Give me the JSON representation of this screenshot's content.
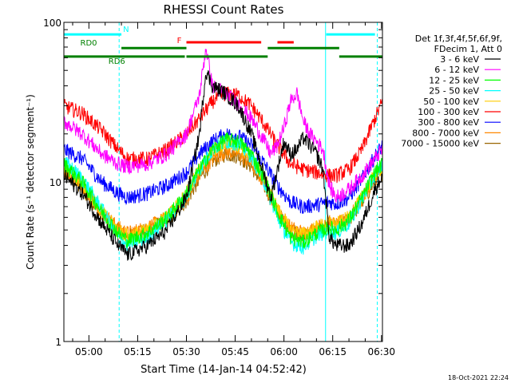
{
  "chart_data": {
    "type": "line",
    "title": "RHESSI Count Rates",
    "xlabel": "Start Time (14-Jan-14 04:52:42)",
    "ylabel": "Count Rate (s⁻¹ detector segment⁻¹)",
    "yscale": "log",
    "ylim": [
      1,
      100
    ],
    "xlim_minutes": [
      -7.7,
      90.3
    ],
    "x_tick_labels": [
      "05:00",
      "05:15",
      "05:30",
      "05:45",
      "06:00",
      "06:15",
      "06:30"
    ],
    "x_tick_minutes": [
      0,
      15,
      30,
      45,
      60,
      75,
      90
    ],
    "y_tick_labels": [
      "1",
      "10",
      "100"
    ],
    "y_tick_values": [
      1,
      10,
      100
    ],
    "legend_header": [
      "Det 1f,3f,4f,5f,6f,9f,",
      "FDecim 1, Att 0"
    ],
    "legend_position": "right",
    "timestamp": "18-Oct-2021 22:24",
    "series": [
      {
        "name": "3 - 6 keV",
        "color": "#000000",
        "x": [
          -7.7,
          -2,
          4,
          9,
          12,
          18,
          24,
          30,
          34,
          36,
          38,
          42,
          46,
          50,
          54,
          56,
          58,
          60,
          62,
          64,
          66,
          68,
          70,
          72,
          74,
          76,
          80,
          84,
          88,
          90.3
        ],
        "values": [
          11,
          8.5,
          5.5,
          4,
          3.5,
          4,
          5,
          8,
          20,
          50,
          40,
          36,
          30,
          20,
          11,
          8,
          12,
          18,
          15,
          16,
          19,
          17,
          15,
          12,
          4.5,
          4,
          4,
          5.5,
          9,
          11
        ]
      },
      {
        "name": "6 - 12 keV",
        "color": "#ff00ff",
        "x": [
          -7.7,
          -2,
          4,
          9,
          12,
          18,
          24,
          30,
          34,
          36,
          38,
          42,
          46,
          50,
          54,
          56,
          58,
          60,
          62,
          64,
          66,
          68,
          70,
          72,
          74,
          76,
          80,
          84,
          88,
          90.3
        ],
        "values": [
          24,
          20,
          15,
          13,
          12.5,
          13,
          15,
          20,
          35,
          70,
          40,
          36,
          31,
          25,
          18,
          15,
          17,
          22,
          32,
          36,
          24,
          20,
          18,
          16,
          9.5,
          8,
          9,
          11,
          14,
          16
        ]
      },
      {
        "name": "12 - 25 keV",
        "color": "#00ff00",
        "x": [
          -7.7,
          -2,
          4,
          9,
          12,
          18,
          24,
          30,
          34,
          38,
          42,
          46,
          50,
          54,
          58,
          62,
          66,
          70,
          74,
          76,
          80,
          84,
          88,
          90.3
        ],
        "values": [
          13,
          10,
          6.5,
          4.8,
          4.3,
          4.8,
          6,
          8.5,
          12,
          16,
          18.5,
          18,
          15,
          10.5,
          6.5,
          4.5,
          4.2,
          4.8,
          5.2,
          5,
          5.8,
          8,
          11.5,
          13
        ]
      },
      {
        "name": "25 - 50 keV",
        "color": "#00ffff",
        "x": [
          -7.7,
          -2,
          4,
          9,
          12,
          18,
          24,
          30,
          34,
          38,
          42,
          46,
          50,
          54,
          58,
          62,
          66,
          70,
          74,
          76,
          80,
          84,
          88,
          90.3
        ],
        "values": [
          13.5,
          10.5,
          6.8,
          4.5,
          4,
          4.5,
          5.8,
          8.2,
          12,
          16,
          18,
          17.5,
          14.5,
          10,
          6,
          4.2,
          3.9,
          4.6,
          5,
          4.8,
          5.5,
          7.8,
          11,
          13
        ]
      },
      {
        "name": "50 - 100 keV",
        "color": "#ffcc00",
        "x": [
          -7.7,
          -2,
          4,
          9,
          12,
          18,
          24,
          30,
          34,
          38,
          42,
          46,
          50,
          54,
          58,
          62,
          66,
          70,
          74,
          76,
          80,
          84,
          88,
          90.3
        ],
        "values": [
          12.5,
          10,
          6.5,
          5,
          4.6,
          5,
          6,
          8.5,
          12,
          15.5,
          17.5,
          17,
          14.5,
          10.5,
          6.8,
          5,
          4.7,
          5.2,
          5.6,
          5.4,
          6,
          8,
          11,
          12.5
        ]
      },
      {
        "name": "100 - 300 keV",
        "color": "#ff0000",
        "x": [
          -7.7,
          -2,
          4,
          9,
          12,
          18,
          24,
          30,
          34,
          38,
          42,
          46,
          50,
          54,
          58,
          62,
          66,
          70,
          74,
          76,
          80,
          84,
          88,
          90.3
        ],
        "values": [
          30,
          27,
          21,
          16,
          14,
          14,
          16,
          20,
          25,
          32,
          36,
          35,
          30,
          23,
          17,
          13,
          12,
          11.5,
          11,
          11,
          12,
          16,
          25,
          32
        ]
      },
      {
        "name": "300 - 800 keV",
        "color": "#0000ff",
        "x": [
          -7.7,
          -2,
          4,
          9,
          12,
          18,
          24,
          30,
          34,
          38,
          42,
          46,
          50,
          54,
          58,
          62,
          66,
          70,
          74,
          76,
          80,
          84,
          88,
          90.3
        ],
        "values": [
          16,
          14,
          10,
          8.5,
          8,
          8.5,
          9.5,
          11.5,
          15,
          18,
          20,
          19.5,
          17,
          13,
          9.5,
          7.5,
          7,
          7.2,
          7.5,
          7.3,
          8,
          10.5,
          14.5,
          17
        ]
      },
      {
        "name": "800 - 7000 keV",
        "color": "#ff8800",
        "x": [
          -7.7,
          -2,
          4,
          9,
          12,
          18,
          24,
          30,
          34,
          38,
          42,
          46,
          50,
          54,
          58,
          62,
          66,
          70,
          74,
          76,
          80,
          84,
          88,
          90.3
        ],
        "values": [
          12,
          9.5,
          6.5,
          5.2,
          4.8,
          5.2,
          6,
          8,
          11,
          14,
          15.5,
          15,
          13,
          9.8,
          6.8,
          5.2,
          4.8,
          5.2,
          5.6,
          5.4,
          6,
          7.8,
          10.5,
          12
        ]
      },
      {
        "name": "7000 - 15000 keV",
        "color": "#996600",
        "x": [
          -7.7,
          -2,
          4,
          9,
          12,
          18,
          24,
          30,
          34,
          38,
          42,
          46,
          50,
          54,
          58,
          62,
          66,
          70,
          74,
          76,
          80,
          84,
          88,
          90.3
        ],
        "values": [
          11.5,
          9,
          6.2,
          5,
          4.6,
          5,
          5.8,
          7.6,
          10.5,
          13.5,
          15,
          14.5,
          12.5,
          9.4,
          6.5,
          5,
          4.6,
          5,
          5.4,
          5.2,
          5.8,
          7.5,
          10,
          11.5
        ]
      }
    ],
    "flag_bars": [
      {
        "label": "N",
        "color": "#00ffff",
        "segments": [
          [
            -7.7,
            10
          ],
          [
            73,
            88
          ]
        ],
        "level": 84
      },
      {
        "label": "F",
        "color": "#ff0000",
        "segments": [
          [
            30,
            53
          ],
          [
            58,
            63
          ]
        ],
        "level": 75
      },
      {
        "label": "RD0",
        "color": "#008000",
        "segments": [
          [
            10,
            30
          ],
          [
            55,
            77
          ]
        ],
        "level": 69
      },
      {
        "label": "RD6",
        "color": "#008000",
        "segments": [
          [
            -7.7,
            29.5
          ],
          [
            30,
            55
          ],
          [
            77,
            90.3
          ]
        ],
        "level": 61
      }
    ],
    "vlines": [
      {
        "x": -7.7,
        "color": "#00ffff",
        "style": "solid"
      },
      {
        "x": 9.3,
        "color": "#00ffff",
        "style": "dashed"
      },
      {
        "x": 72.8,
        "color": "#00ffff",
        "style": "solid"
      },
      {
        "x": 88.7,
        "color": "#00ffff",
        "style": "dashed"
      }
    ]
  }
}
